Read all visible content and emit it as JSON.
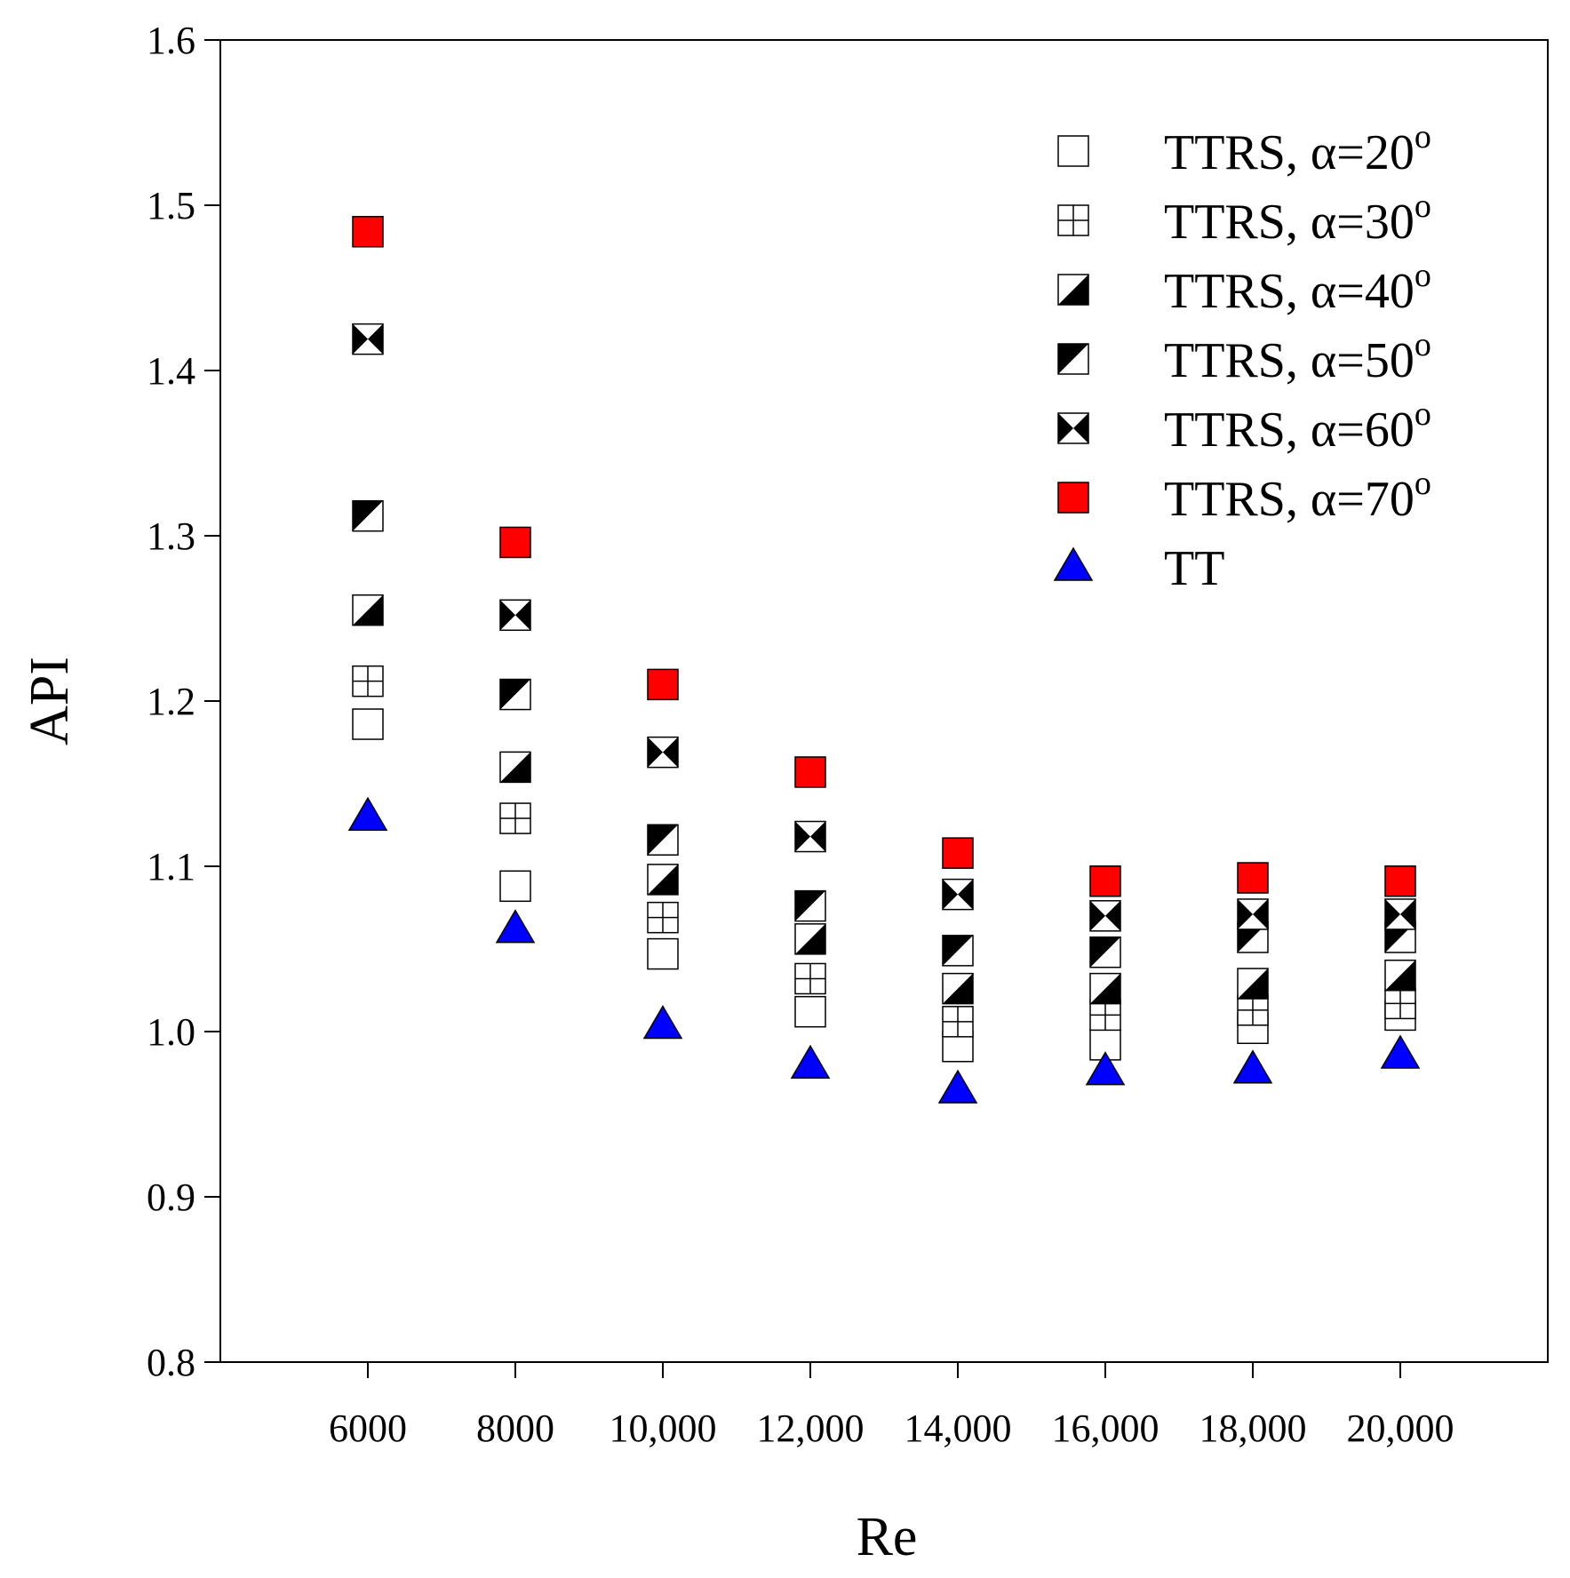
{
  "chart_data": {
    "type": "scatter",
    "title": "",
    "xlabel": "Re",
    "ylabel": "API",
    "xlim": [
      4000,
      22000
    ],
    "ylim": [
      0.8,
      1.6
    ],
    "x_ticks": [
      6000,
      8000,
      10000,
      12000,
      14000,
      16000,
      18000,
      20000
    ],
    "x_tick_labels": [
      "6000",
      "8000",
      "10,000",
      "12,000",
      "14,000",
      "16,000",
      "18,000",
      "20,000"
    ],
    "y_ticks": [
      0.8,
      0.9,
      1.0,
      1.1,
      1.2,
      1.3,
      1.4,
      1.5,
      1.6
    ],
    "y_tick_labels": [
      "0.8",
      "0.9",
      "1.0",
      "1.1",
      "1.2",
      "1.3",
      "1.4",
      "1.5",
      "1.6"
    ],
    "grid": false,
    "legend_position": "top-right",
    "x": [
      6000,
      8000,
      10000,
      12000,
      14000,
      16000,
      18000,
      20000
    ],
    "series": [
      {
        "name": "TTRS, α=20",
        "label_text": "TTRS, α=20",
        "superscript": "o",
        "marker": "square-open",
        "color": "#ffffff",
        "values": [
          1.186,
          1.088,
          1.047,
          1.012,
          0.991,
          0.992,
          1.002,
          1.01
        ]
      },
      {
        "name": "TTRS, α=30",
        "label_text": "TTRS, α=30",
        "superscript": "o",
        "marker": "square-crosshatch",
        "color": "#ffffff",
        "values": [
          1.212,
          1.129,
          1.069,
          1.032,
          1.006,
          1.01,
          1.013,
          1.017
        ]
      },
      {
        "name": "TTRS, α=40",
        "label_text": "TTRS, α=40",
        "superscript": "o",
        "marker": "square-half-lower-right",
        "color": "#000000",
        "values": [
          1.255,
          1.16,
          1.092,
          1.056,
          1.026,
          1.026,
          1.029,
          1.034
        ]
      },
      {
        "name": "TTRS, α=50",
        "label_text": "TTRS, α=50",
        "superscript": "o",
        "marker": "square-half-upper-left",
        "color": "#000000",
        "values": [
          1.312,
          1.204,
          1.116,
          1.076,
          1.049,
          1.048,
          1.057,
          1.057
        ]
      },
      {
        "name": "TTRS, α=60",
        "label_text": "TTRS, α=60",
        "superscript": "o",
        "marker": "square-hourglass",
        "color": "#000000",
        "values": [
          1.419,
          1.252,
          1.169,
          1.118,
          1.083,
          1.07,
          1.071,
          1.071
        ]
      },
      {
        "name": "TTRS, α=70",
        "label_text": "TTRS, α=70",
        "superscript": "o",
        "marker": "square-filled",
        "color": "#ff0000",
        "values": [
          1.484,
          1.296,
          1.21,
          1.157,
          1.108,
          1.091,
          1.093,
          1.091
        ]
      },
      {
        "name": "TT",
        "label_text": "TT",
        "superscript": "",
        "marker": "triangle",
        "color": "#0000ff",
        "values": [
          1.13,
          1.062,
          1.004,
          0.98,
          0.965,
          0.976,
          0.977,
          0.986
        ]
      }
    ]
  }
}
